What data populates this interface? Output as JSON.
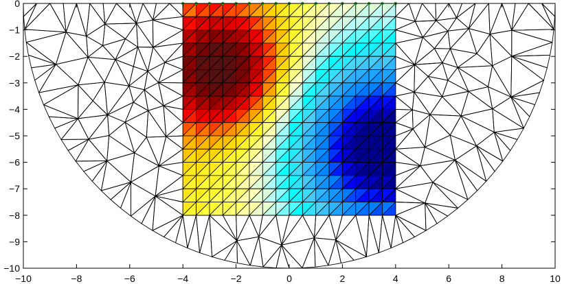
{
  "chart_data": {
    "type": "heatmap",
    "title": "",
    "xlabel": "",
    "ylabel": "",
    "xlim": [
      -10,
      10
    ],
    "ylim": [
      -10,
      0
    ],
    "grid": false,
    "x_ticks": [
      -10,
      -8,
      -6,
      -4,
      -2,
      0,
      2,
      4,
      6,
      8,
      10
    ],
    "y_ticks": [
      0,
      -1,
      -2,
      -3,
      -4,
      -5,
      -6,
      -7,
      -8,
      -9,
      -10
    ],
    "x_tick_labels": [
      "−10",
      "−8",
      "−6",
      "−4",
      "−2",
      "0",
      "2",
      "4",
      "6",
      "8",
      "10"
    ],
    "y_tick_labels": [
      "0",
      "−1",
      "−2",
      "−3",
      "−4",
      "−5",
      "−6",
      "−7",
      "−8",
      "−9",
      "−10"
    ],
    "mesh": {
      "type": "triangular mesh",
      "domain": "half-disc of radius 10 centred at (0, 0), y ≤ 0",
      "inner_block_x": [
        -4,
        4
      ],
      "inner_block_y": [
        -8,
        0
      ],
      "inner_cell_size": 0.5,
      "outer_point_count": 360,
      "edge_color": "#000000"
    },
    "value_field": {
      "description": "cell colour values (0 = blue, 1 = dark red) on the 16 x 16 inner grid, rows from y = 0 downward",
      "peak_location": [
        -2.5,
        -2.5
      ],
      "low_location": [
        3.5,
        -5.5
      ],
      "min": 0.0,
      "max": 1.0
    },
    "colormap": [
      "#00008f",
      "#0000ff",
      "#0080ff",
      "#1fa6ff",
      "#4ed2f5",
      "#00ffff",
      "#b5fbf9",
      "#ffffc0",
      "#ffff3a",
      "#ffd200",
      "#ff8000",
      "#ff0000",
      "#c00000",
      "#800000",
      "#551111"
    ],
    "surface_markers_color": "#1fa01f"
  }
}
